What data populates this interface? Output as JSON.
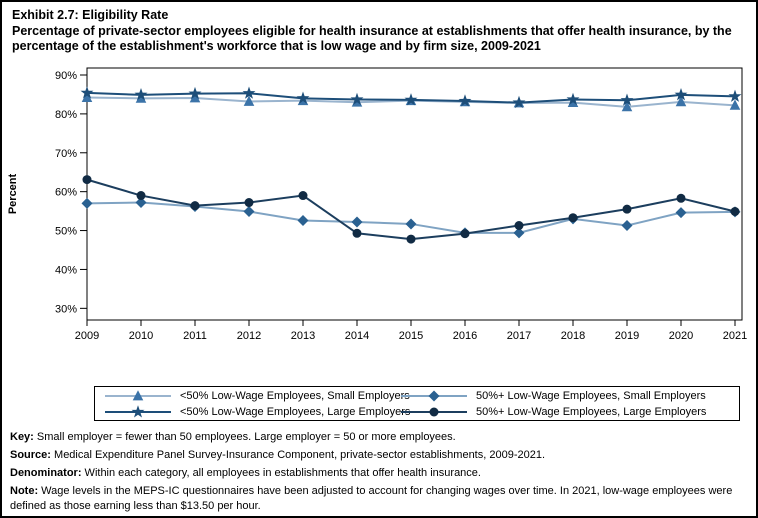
{
  "title": {
    "exhibit": "Exhibit 2.7: Eligibility Rate",
    "subtitle": "Percentage of private-sector employees eligible for health insurance at establishments that offer health insurance, by the percentage of the establishment's workforce that is low wage and by firm size, 2009-2021"
  },
  "chart_data": {
    "type": "line",
    "title": "",
    "xlabel": "",
    "ylabel": "Percent",
    "ylim": [
      27,
      91.8
    ],
    "yticks": [
      30,
      40,
      50,
      60,
      70,
      80,
      90
    ],
    "ytick_suffix": "%",
    "grid": false,
    "legend_position": "bottom",
    "x": [
      2009,
      2010,
      2011,
      2012,
      2013,
      2014,
      2015,
      2016,
      2017,
      2018,
      2019,
      2020,
      2021
    ],
    "series": [
      {
        "name": "<50% Low-Wage Employees, Small Employers",
        "marker": "triangle",
        "line_color": "#9AB4CE",
        "marker_color": "#3B73A8",
        "values": [
          84.2,
          84.0,
          84.1,
          83.2,
          83.4,
          83.0,
          83.4,
          83.1,
          82.8,
          82.9,
          81.8,
          83.1,
          82.2
        ]
      },
      {
        "name": "<50% Low-Wage Employees, Large Employers",
        "marker": "star",
        "line_color": "#1D4E79",
        "marker_color": "#1D4E79",
        "values": [
          85.4,
          84.9,
          85.2,
          85.3,
          84.0,
          83.7,
          83.6,
          83.3,
          82.9,
          83.7,
          83.5,
          84.9,
          84.5
        ]
      },
      {
        "name": "50%+ Low-Wage Employees, Small Employers",
        "marker": "diamond",
        "line_color": "#7FA3C3",
        "marker_color": "#2A6191",
        "values": [
          57.0,
          57.2,
          56.2,
          54.9,
          52.6,
          52.2,
          51.7,
          49.4,
          49.4,
          53.0,
          51.3,
          54.6,
          54.8
        ]
      },
      {
        "name": "50%+ Low-Wage Employees, Large Employers",
        "marker": "circle",
        "line_color": "#1C3E5E",
        "marker_color": "#112B44",
        "values": [
          63.1,
          59.0,
          56.4,
          57.2,
          59.0,
          49.3,
          47.8,
          49.2,
          51.3,
          53.3,
          55.5,
          58.3,
          54.9
        ]
      }
    ]
  },
  "legend": {
    "items": [
      {
        "series": 0,
        "label": "<50% Low-Wage Employees, Small Employers"
      },
      {
        "series": 2,
        "label": "50%+ Low-Wage Employees, Small Employers"
      },
      {
        "series": 1,
        "label": "<50% Low-Wage Employees, Large Employers"
      },
      {
        "series": 3,
        "label": "50%+ Low-Wage Employees, Large Employers"
      }
    ]
  },
  "notes": [
    {
      "label": "Key:",
      "text": " Small employer = fewer than 50 employees. Large employer = 50 or more employees."
    },
    {
      "label": "Source:",
      "text": " Medical Expenditure Panel Survey-Insurance Component, private-sector establishments, 2009-2021."
    },
    {
      "label": "Denominator:",
      "text": " Within each category, all employees in establishments that offer health insurance."
    },
    {
      "label": "Note:",
      "text": " Wage levels in the MEPS-IC questionnaires have been adjusted to account for changing wages over time. In 2021, low-wage employees were defined as those earning less than $13.50 per hour."
    }
  ]
}
